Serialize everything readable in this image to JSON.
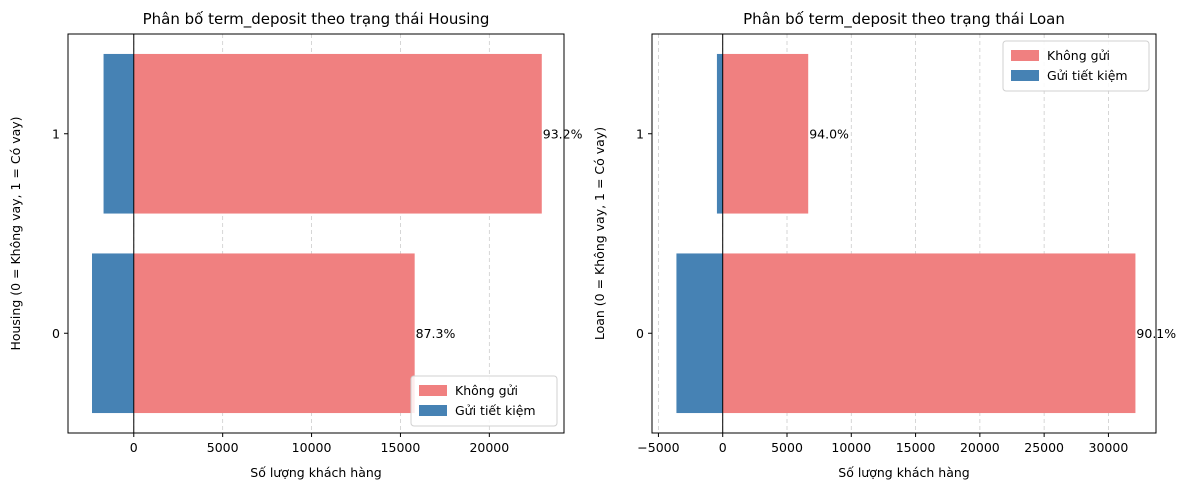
{
  "chart_data": [
    {
      "type": "bar",
      "orientation": "horizontal",
      "title": "Phân bố term_deposit theo trạng thái Housing",
      "xlabel": "Số lượng khách hàng",
      "ylabel": "Housing (0 = Không vay, 1 = Có vay)",
      "categories": [
        "0",
        "1"
      ],
      "series": [
        {
          "name": "Không gửi",
          "values": [
            15800,
            22950
          ],
          "color": "#f08080"
        },
        {
          "name": "Gửi tiết kiệm",
          "values": [
            -2350,
            -1700
          ],
          "color": "#4682b4"
        }
      ],
      "percent_labels": [
        "87.3%",
        "93.2%"
      ],
      "xlim": [
        -3700,
        24200
      ],
      "xticks": [
        0,
        5000,
        10000,
        15000,
        20000
      ],
      "xtick_labels": [
        "0",
        "5000",
        "10000",
        "15000",
        "20000"
      ],
      "grid": "x dashed",
      "legend": "lower right"
    },
    {
      "type": "bar",
      "orientation": "horizontal",
      "title": "Phân bố term_deposit theo trạng thái Loan",
      "xlabel": "Số lượng khách hàng",
      "ylabel": "Loan (0 = Không vay, 1 = Có vay)",
      "categories": [
        "0",
        "1"
      ],
      "series": [
        {
          "name": "Không gửi",
          "values": [
            32100,
            6650
          ],
          "color": "#f08080"
        },
        {
          "name": "Gửi tiết kiệm",
          "values": [
            -3600,
            -450
          ],
          "color": "#4682b4"
        }
      ],
      "percent_labels": [
        "90.1%",
        "94.0%"
      ],
      "xlim": [
        -5500,
        33700
      ],
      "xticks": [
        -5000,
        0,
        5000,
        10000,
        15000,
        20000,
        25000,
        30000
      ],
      "xtick_labels": [
        "−5000",
        "0",
        "5000",
        "10000",
        "15000",
        "20000",
        "25000",
        "30000"
      ],
      "grid": "x dashed",
      "legend": "upper right"
    }
  ]
}
